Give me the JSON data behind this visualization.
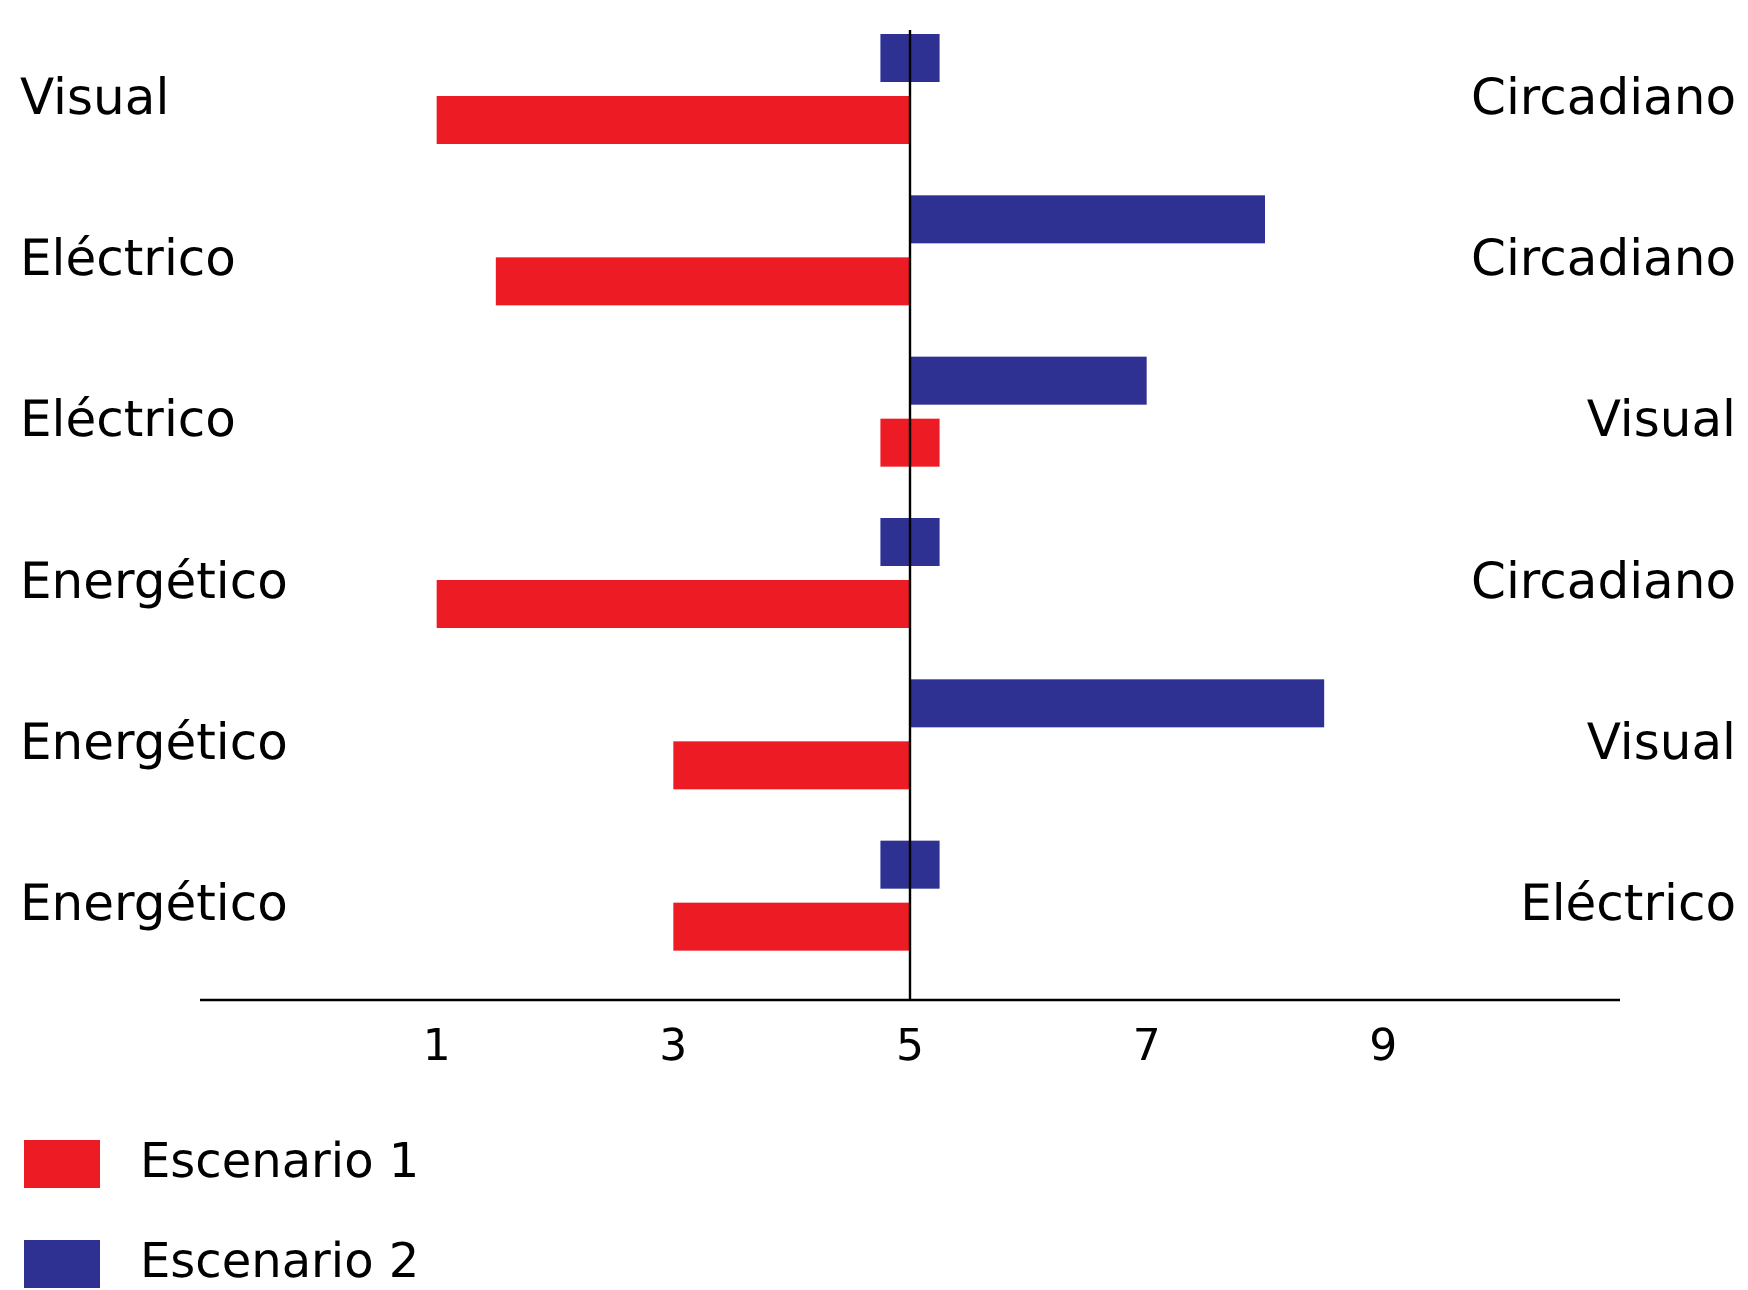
{
  "chart_data": {
    "type": "bar",
    "orientation": "horizontal",
    "categories": [
      "Visual",
      "Eléctrico",
      "Eléctrico",
      "Energético",
      "Energético",
      "Energético"
    ],
    "y2_categories": [
      "Circadiano",
      "Circadiano",
      "Visual",
      "Circadiano",
      "Visual",
      "Eléctrico"
    ],
    "series": [
      {
        "name": "Escenario 1",
        "color": "#ed1c24",
        "base": [
          5,
          5,
          4.75,
          5,
          5,
          5
        ],
        "values": [
          -4,
          -3.5,
          0.5,
          -4,
          -2,
          -2
        ]
      },
      {
        "name": "Escenario 2",
        "color": "#2e3192",
        "base": [
          4.75,
          5,
          5,
          4.75,
          5,
          4.75
        ],
        "values": [
          0.5,
          3,
          2,
          0.5,
          3.5,
          0.5
        ]
      }
    ],
    "xlim": [
      -1,
      11
    ],
    "xticks": [
      1,
      3,
      5,
      7,
      9
    ],
    "ref_lines": [
      {
        "axis": "x",
        "value": 5
      }
    ],
    "grid": false,
    "legend": "bottom left"
  }
}
